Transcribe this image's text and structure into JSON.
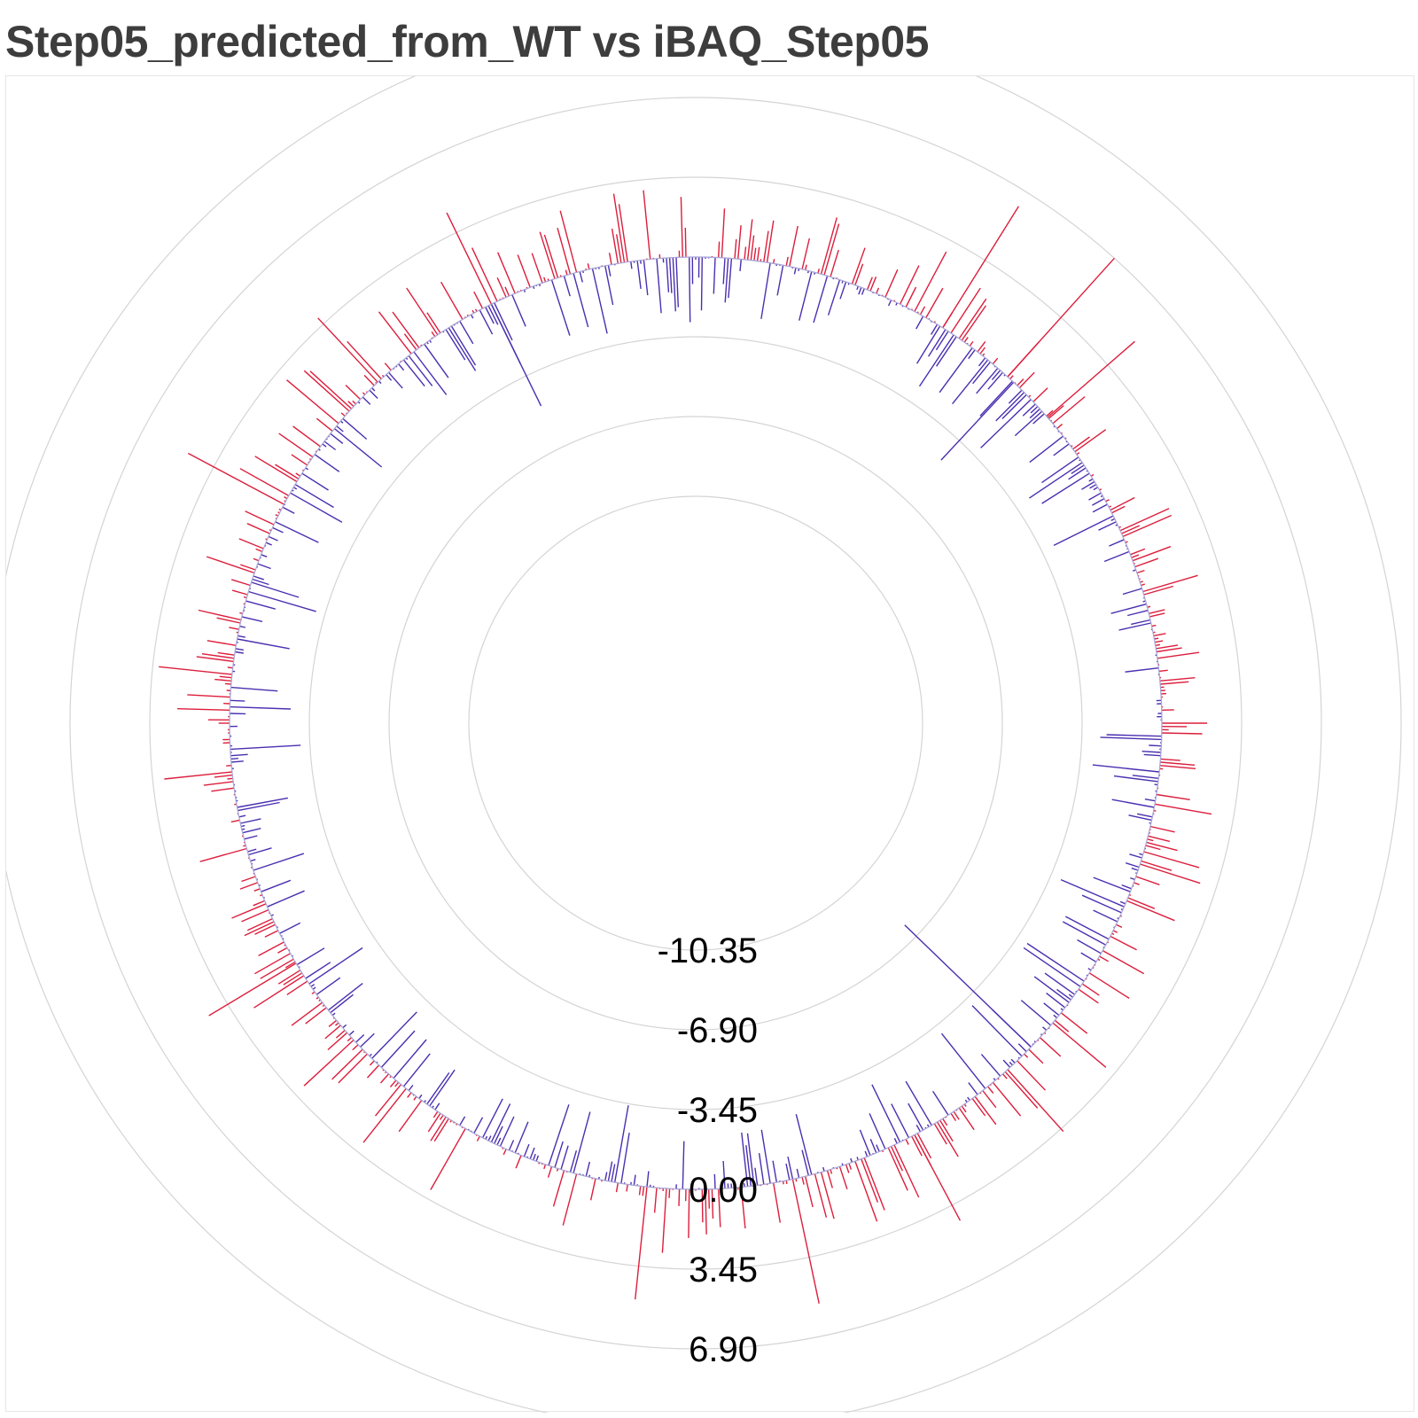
{
  "title": "Step05_predicted_from_WT vs iBAQ_Step05",
  "colors": {
    "positive": "#dc1e3c",
    "negative": "#4a2fb0",
    "grid": "#d4d4d4",
    "title": "#3d3d3d"
  },
  "chart_data": {
    "type": "radial-bar",
    "title": "Step05_predicted_from_WT vs iBAQ_Step05",
    "radial_axis": {
      "ticks": [
        -10.35,
        -6.9,
        -3.45,
        0.0,
        3.45,
        6.9
      ],
      "tick_labels": [
        "-10.35",
        "-6.90",
        "-3.45",
        "0.00",
        "3.45",
        "6.90"
      ],
      "range": [
        -13.8,
        10.35
      ],
      "grid": true
    },
    "series": [
      {
        "sign": "positive",
        "color": "#dc1e3c"
      },
      {
        "sign": "negative",
        "color": "#4a2fb0"
      }
    ],
    "n_points": 900,
    "notable_values": [
      {
        "angle_deg": 32,
        "value": 6.2
      },
      {
        "angle_deg": 42,
        "value": 6.9
      },
      {
        "angle_deg": 49,
        "value": 5.0
      },
      {
        "angle_deg": 138,
        "value": 3.6
      },
      {
        "angle_deg": 152,
        "value": 4.2
      },
      {
        "angle_deg": 168,
        "value": 5.5
      },
      {
        "angle_deg": 186,
        "value": 4.9
      },
      {
        "angle_deg": 239,
        "value": 4.4
      },
      {
        "angle_deg": 298,
        "value": 4.7
      },
      {
        "angle_deg": 317,
        "value": 3.8
      },
      {
        "angle_deg": 334,
        "value": 4.4
      },
      {
        "angle_deg": 134,
        "value": -7.6
      },
      {
        "angle_deg": 334,
        "value": -4.9
      },
      {
        "angle_deg": 43,
        "value": -4.6
      },
      {
        "angle_deg": 96,
        "value": -2.9
      }
    ]
  }
}
